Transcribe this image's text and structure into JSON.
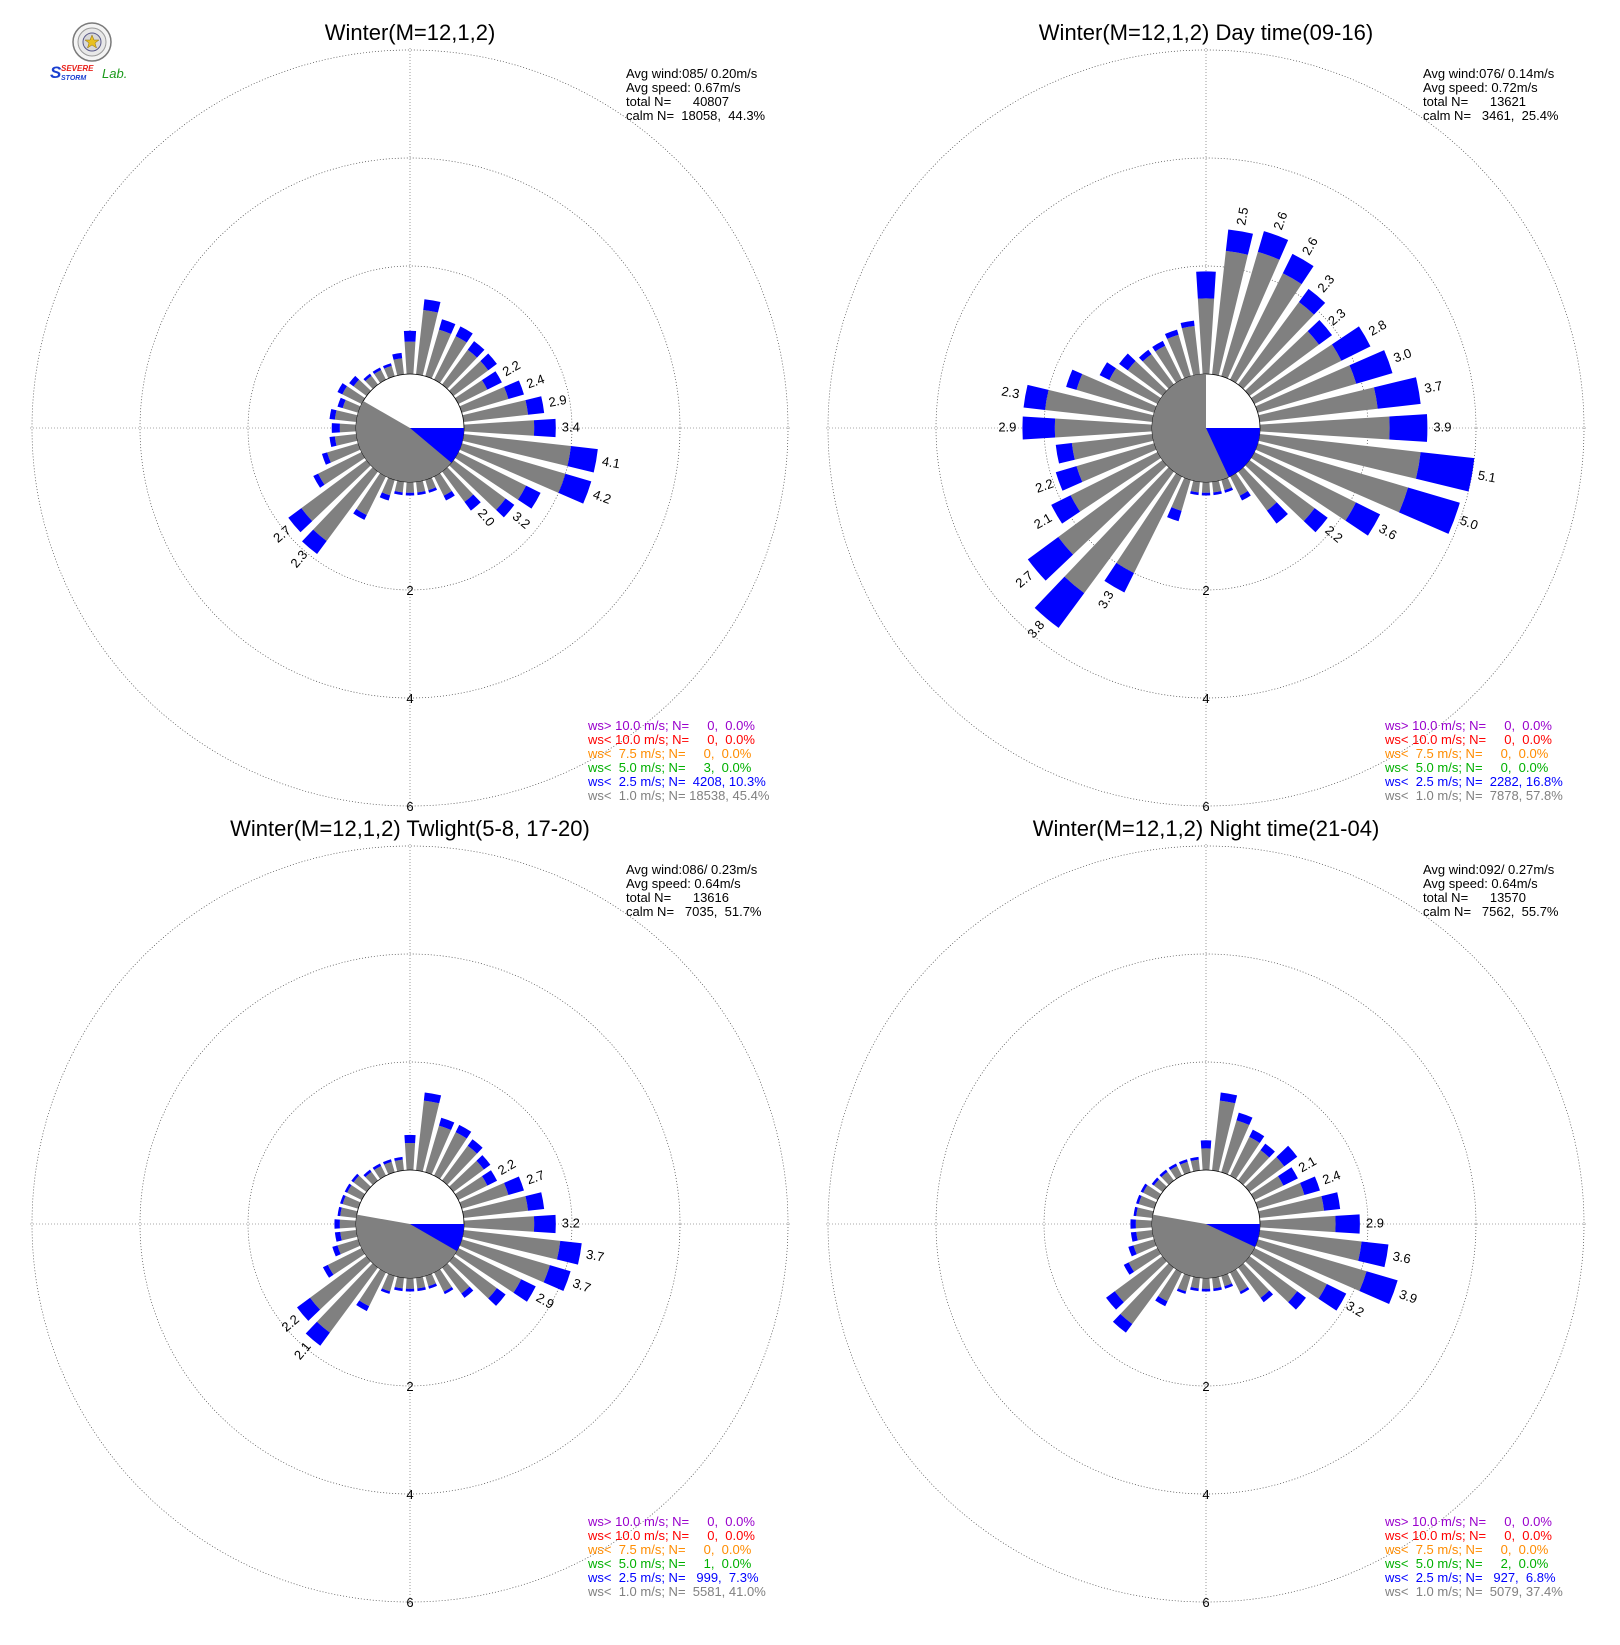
{
  "logo": {
    "text_severe": "SEVERE",
    "text_storm": "STORM",
    "text_lab": "Lab.",
    "color_s": "#1a3fd0",
    "color_red": "#e8201a",
    "color_green": "#1a9a1a"
  },
  "colors": {
    "calm_grey": "#808080",
    "blue": "#0000ff",
    "green": "#00b000",
    "orange": "#ff8c00",
    "red": "#ff0000",
    "purple": "#9900cc",
    "legend_grey": "#808080"
  },
  "chart_data": [
    {
      "type": "polar_bar_windrose",
      "title": "Winter(M=12,1,2)",
      "stats": {
        "avg_wind": "Avg wind:085/ 0.20m/s",
        "avg_speed": "Avg speed: 0.67m/s",
        "total_n": "total N=      40807",
        "calm_n": "calm N=  18058,  44.3%"
      },
      "ring_labels": [
        "2",
        "4",
        "6"
      ],
      "directions_deg": [
        0,
        10,
        20,
        30,
        40,
        50,
        60,
        70,
        80,
        90,
        100,
        110,
        120,
        130,
        140,
        150,
        160,
        170,
        180,
        190,
        200,
        210,
        220,
        230,
        240,
        250,
        260,
        270,
        280,
        290,
        300,
        310,
        320,
        330,
        340,
        350
      ],
      "grey_pct": [
        0.6,
        1.2,
        0.9,
        0.9,
        0.8,
        0.8,
        0.6,
        0.9,
        1.2,
        1.3,
        2.0,
        2.0,
        1.4,
        1.2,
        0.7,
        0.4,
        0.2,
        0.2,
        0.2,
        0.2,
        0.3,
        0.8,
        1.6,
        1.5,
        0.9,
        0.6,
        0.4,
        0.3,
        0.4,
        0.3,
        0.4,
        0.3,
        0.2,
        0.2,
        0.2,
        0.3
      ],
      "blue_pct": [
        0.2,
        0.2,
        0.2,
        0.2,
        0.2,
        0.2,
        0.3,
        0.3,
        0.3,
        0.4,
        0.5,
        0.5,
        0.3,
        0.2,
        0.2,
        0.1,
        0.05,
        0.05,
        0.05,
        0.05,
        0.1,
        0.1,
        0.3,
        0.3,
        0.1,
        0.1,
        0.1,
        0.15,
        0.1,
        0.1,
        0.1,
        0.1,
        0.05,
        0.05,
        0.05,
        0.1
      ],
      "bar_labels": [
        {
          "dir": 60,
          "text": "2.2"
        },
        {
          "dir": 70,
          "text": "2.4"
        },
        {
          "dir": 80,
          "text": "2.9"
        },
        {
          "dir": 90,
          "text": "3.4"
        },
        {
          "dir": 100,
          "text": "4.1"
        },
        {
          "dir": 110,
          "text": "4.2"
        },
        {
          "dir": 130,
          "text": "3.2"
        },
        {
          "dir": 140,
          "text": "2.0"
        },
        {
          "dir": 220,
          "text": "2.3"
        },
        {
          "dir": 230,
          "text": "2.7"
        }
      ],
      "calm_grey_start_deg": 90,
      "calm_grey_end_deg": 300,
      "calm_blue_start_deg": 90,
      "calm_blue_end_deg": 130,
      "legend": [
        {
          "color_key": "purple",
          "text": "ws> 10.0 m/s; N=     0,  0.0%"
        },
        {
          "color_key": "red",
          "text": "ws< 10.0 m/s; N=     0,  0.0%"
        },
        {
          "color_key": "orange",
          "text": "ws<  7.5 m/s; N=     0,  0.0%"
        },
        {
          "color_key": "green",
          "text": "ws<  5.0 m/s; N=     3,  0.0%"
        },
        {
          "color_key": "blue",
          "text": "ws<  2.5 m/s; N=  4208, 10.3%"
        },
        {
          "color_key": "legend_grey",
          "text": "ws<  1.0 m/s; N= 18538, 45.4%"
        }
      ]
    },
    {
      "type": "polar_bar_windrose",
      "title": "Winter(M=12,1,2) Day time(09-16)",
      "stats": {
        "avg_wind": "Avg wind:076/ 0.14m/s",
        "avg_speed": "Avg speed: 0.72m/s",
        "total_n": "total N=      13621",
        "calm_n": "calm N=   3461,  25.4%"
      },
      "ring_labels": [
        "2",
        "4",
        "6"
      ],
      "directions_deg": [
        0,
        10,
        20,
        30,
        40,
        50,
        60,
        70,
        80,
        90,
        100,
        110,
        120,
        130,
        140,
        150,
        160,
        170,
        180,
        190,
        200,
        210,
        220,
        230,
        240,
        250,
        260,
        270,
        280,
        290,
        300,
        310,
        320,
        330,
        340,
        350
      ],
      "grey_pct": [
        1.4,
        2.3,
        2.4,
        2.2,
        1.9,
        1.6,
        1.8,
        1.9,
        2.2,
        2.4,
        3.0,
        2.9,
        2.1,
        1.5,
        0.9,
        0.4,
        0.2,
        0.2,
        0.2,
        0.2,
        0.6,
        2.0,
        2.8,
        2.4,
        1.8,
        1.5,
        1.5,
        1.8,
        2.0,
        1.5,
        1.0,
        0.8,
        0.7,
        0.7,
        0.8,
        0.9
      ],
      "blue_pct": [
        0.5,
        0.4,
        0.4,
        0.4,
        0.3,
        0.3,
        0.6,
        0.7,
        0.8,
        0.7,
        1.0,
        1.0,
        0.5,
        0.3,
        0.3,
        0.1,
        0.05,
        0.05,
        0.05,
        0.05,
        0.2,
        0.4,
        0.8,
        0.7,
        0.4,
        0.4,
        0.3,
        0.6,
        0.4,
        0.2,
        0.2,
        0.2,
        0.1,
        0.1,
        0.1,
        0.1
      ],
      "bar_labels": [
        {
          "dir": 10,
          "text": "2.5"
        },
        {
          "dir": 20,
          "text": "2.6"
        },
        {
          "dir": 30,
          "text": "2.6"
        },
        {
          "dir": 40,
          "text": "2.3"
        },
        {
          "dir": 50,
          "text": "2.3"
        },
        {
          "dir": 60,
          "text": "2.8"
        },
        {
          "dir": 70,
          "text": "3.0"
        },
        {
          "dir": 80,
          "text": "3.7"
        },
        {
          "dir": 90,
          "text": "3.9"
        },
        {
          "dir": 100,
          "text": "5.1"
        },
        {
          "dir": 110,
          "text": "5.0"
        },
        {
          "dir": 120,
          "text": "3.6"
        },
        {
          "dir": 130,
          "text": "2.2"
        },
        {
          "dir": 210,
          "text": "3.3"
        },
        {
          "dir": 220,
          "text": "3.8"
        },
        {
          "dir": 230,
          "text": "2.7"
        },
        {
          "dir": 240,
          "text": "2.1"
        },
        {
          "dir": 250,
          "text": "2.2"
        },
        {
          "dir": 270,
          "text": "2.9"
        },
        {
          "dir": 280,
          "text": "2.3"
        }
      ],
      "calm_grey_start_deg": 90,
      "calm_grey_end_deg": 360,
      "calm_blue_start_deg": 90,
      "calm_blue_end_deg": 155,
      "legend": [
        {
          "color_key": "purple",
          "text": "ws> 10.0 m/s; N=     0,  0.0%"
        },
        {
          "color_key": "red",
          "text": "ws< 10.0 m/s; N=     0,  0.0%"
        },
        {
          "color_key": "orange",
          "text": "ws<  7.5 m/s; N=     0,  0.0%"
        },
        {
          "color_key": "green",
          "text": "ws<  5.0 m/s; N=     0,  0.0%"
        },
        {
          "color_key": "blue",
          "text": "ws<  2.5 m/s; N=  2282, 16.8%"
        },
        {
          "color_key": "legend_grey",
          "text": "ws<  1.0 m/s; N=  7878, 57.8%"
        }
      ]
    },
    {
      "type": "polar_bar_windrose",
      "title": "Winter(M=12,1,2) Twlight(5-8, 17-20)",
      "stats": {
        "avg_wind": "Avg wind:086/ 0.23m/s",
        "avg_speed": "Avg speed: 0.64m/s",
        "total_n": "total N=      13616",
        "calm_n": "calm N=   7035,  51.7%"
      },
      "ring_labels": [
        "2",
        "4",
        "6"
      ],
      "directions_deg": [
        0,
        10,
        20,
        30,
        40,
        50,
        60,
        70,
        80,
        90,
        100,
        110,
        120,
        130,
        140,
        150,
        160,
        170,
        180,
        190,
        200,
        210,
        220,
        230,
        240,
        250,
        260,
        270,
        280,
        290,
        300,
        310,
        320,
        330,
        340,
        350
      ],
      "grey_pct": [
        0.5,
        1.3,
        0.9,
        0.9,
        0.8,
        0.7,
        0.6,
        0.9,
        1.2,
        1.3,
        1.8,
        1.7,
        1.3,
        1.0,
        0.6,
        0.4,
        0.2,
        0.2,
        0.2,
        0.2,
        0.3,
        0.7,
        1.5,
        1.3,
        0.7,
        0.4,
        0.3,
        0.3,
        0.3,
        0.3,
        0.3,
        0.3,
        0.2,
        0.2,
        0.2,
        0.2
      ],
      "blue_pct": [
        0.15,
        0.15,
        0.15,
        0.15,
        0.15,
        0.15,
        0.2,
        0.3,
        0.3,
        0.4,
        0.4,
        0.4,
        0.3,
        0.2,
        0.1,
        0.05,
        0.05,
        0.05,
        0.05,
        0.05,
        0.05,
        0.1,
        0.3,
        0.3,
        0.1,
        0.1,
        0.1,
        0.1,
        0.05,
        0.05,
        0.05,
        0.05,
        0.05,
        0.05,
        0.05,
        0.05
      ],
      "bar_labels": [
        {
          "dir": 60,
          "text": "2.2"
        },
        {
          "dir": 70,
          "text": "2.7"
        },
        {
          "dir": 90,
          "text": "3.2"
        },
        {
          "dir": 100,
          "text": "3.7"
        },
        {
          "dir": 110,
          "text": "3.7"
        },
        {
          "dir": 120,
          "text": "2.9"
        },
        {
          "dir": 220,
          "text": "2.1"
        },
        {
          "dir": 230,
          "text": "2.2"
        }
      ],
      "calm_grey_start_deg": 90,
      "calm_grey_end_deg": 280,
      "calm_blue_start_deg": 90,
      "calm_blue_end_deg": 120,
      "legend": [
        {
          "color_key": "purple",
          "text": "ws> 10.0 m/s; N=     0,  0.0%"
        },
        {
          "color_key": "red",
          "text": "ws< 10.0 m/s; N=     0,  0.0%"
        },
        {
          "color_key": "orange",
          "text": "ws<  7.5 m/s; N=     0,  0.0%"
        },
        {
          "color_key": "green",
          "text": "ws<  5.0 m/s; N=     1,  0.0%"
        },
        {
          "color_key": "blue",
          "text": "ws<  2.5 m/s; N=   999,  7.3%"
        },
        {
          "color_key": "legend_grey",
          "text": "ws<  1.0 m/s; N=  5581, 41.0%"
        }
      ]
    },
    {
      "type": "polar_bar_windrose",
      "title": "Winter(M=12,1,2) Night time(21-04)",
      "stats": {
        "avg_wind": "Avg wind:092/ 0.27m/s",
        "avg_speed": "Avg speed: 0.64m/s",
        "total_n": "total N=      13570",
        "calm_n": "calm N=   7562,  55.7%"
      },
      "ring_labels": [
        "2",
        "4",
        "6"
      ],
      "directions_deg": [
        0,
        10,
        20,
        30,
        40,
        50,
        60,
        70,
        80,
        90,
        100,
        110,
        120,
        130,
        140,
        150,
        160,
        170,
        180,
        190,
        200,
        210,
        220,
        230,
        240,
        250,
        260,
        270,
        280,
        290,
        300,
        310,
        320,
        330,
        340,
        350
      ],
      "grey_pct": [
        0.4,
        1.3,
        1.0,
        0.8,
        0.7,
        0.8,
        0.6,
        0.9,
        1.2,
        1.4,
        1.9,
        2.1,
        1.5,
        1.1,
        0.7,
        0.4,
        0.2,
        0.2,
        0.2,
        0.2,
        0.3,
        0.6,
        1.3,
        1.1,
        0.6,
        0.4,
        0.3,
        0.3,
        0.3,
        0.3,
        0.3,
        0.2,
        0.2,
        0.2,
        0.2,
        0.2
      ],
      "blue_pct": [
        0.15,
        0.15,
        0.15,
        0.15,
        0.15,
        0.3,
        0.3,
        0.3,
        0.3,
        0.45,
        0.5,
        0.6,
        0.4,
        0.2,
        0.1,
        0.05,
        0.05,
        0.05,
        0.05,
        0.05,
        0.05,
        0.1,
        0.2,
        0.2,
        0.1,
        0.1,
        0.1,
        0.1,
        0.05,
        0.05,
        0.05,
        0.05,
        0.05,
        0.05,
        0.05,
        0.05
      ],
      "bar_labels": [
        {
          "dir": 60,
          "text": "2.1"
        },
        {
          "dir": 70,
          "text": "2.4"
        },
        {
          "dir": 90,
          "text": "2.9"
        },
        {
          "dir": 100,
          "text": "3.6"
        },
        {
          "dir": 110,
          "text": "3.9"
        },
        {
          "dir": 120,
          "text": "3.2"
        }
      ],
      "calm_grey_start_deg": 90,
      "calm_grey_end_deg": 280,
      "calm_blue_start_deg": 90,
      "calm_blue_end_deg": 115,
      "legend": [
        {
          "color_key": "purple",
          "text": "ws> 10.0 m/s; N=     0,  0.0%"
        },
        {
          "color_key": "red",
          "text": "ws< 10.0 m/s; N=     0,  0.0%"
        },
        {
          "color_key": "orange",
          "text": "ws<  7.5 m/s; N=     0,  0.0%"
        },
        {
          "color_key": "green",
          "text": "ws<  5.0 m/s; N=     2,  0.0%"
        },
        {
          "color_key": "blue",
          "text": "ws<  2.5 m/s; N=   927,  6.8%"
        },
        {
          "color_key": "legend_grey",
          "text": "ws<  1.0 m/s; N=  5079, 37.4%"
        }
      ]
    }
  ]
}
